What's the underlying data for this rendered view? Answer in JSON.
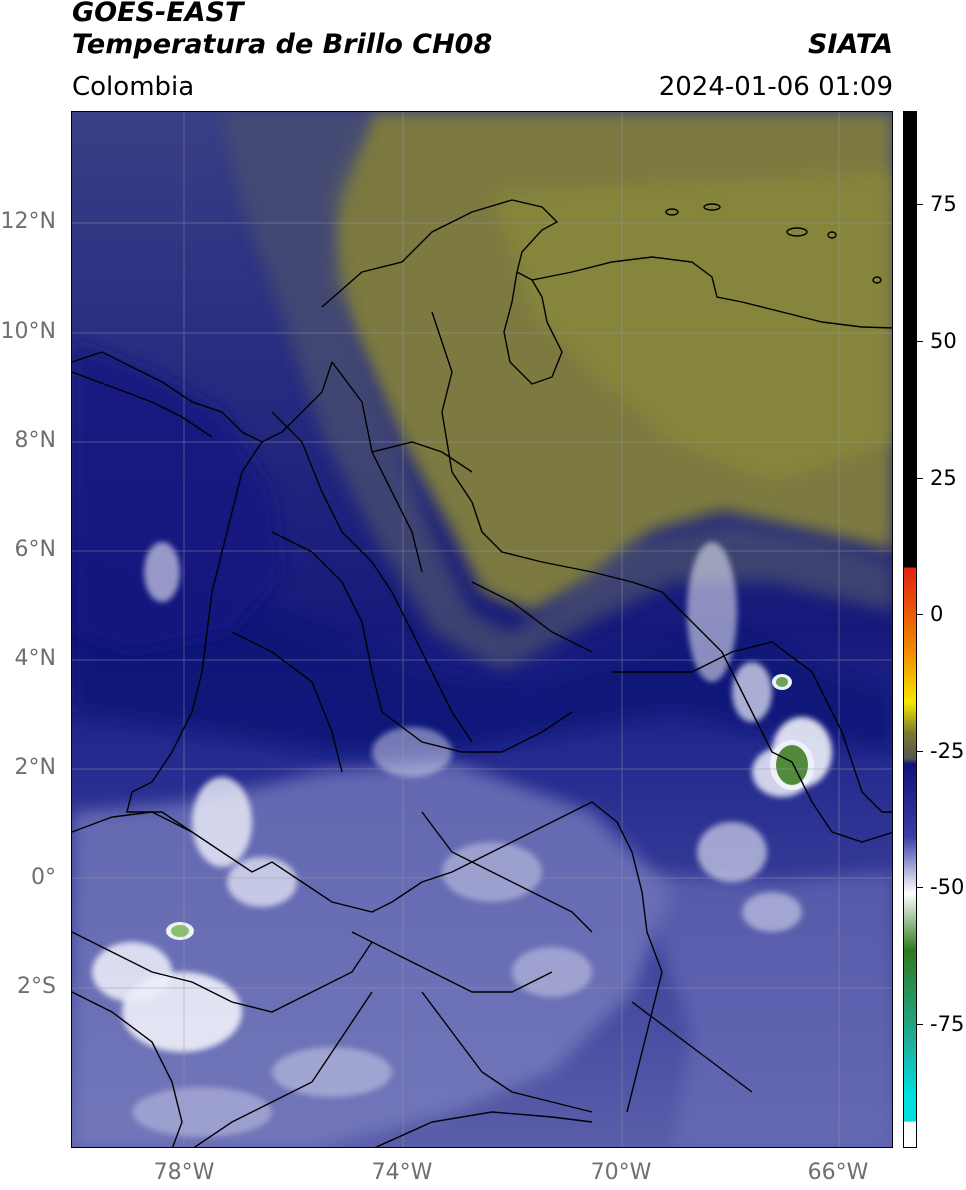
{
  "header": {
    "satellite": "GOES-EAST",
    "product": "Temperatura de Brillo CH08",
    "source": "SIATA",
    "region": "Colombia",
    "timestamp": "2024-01-06 01:09"
  },
  "axes": {
    "lat_labels": [
      "12°N",
      "10°N",
      "8°N",
      "6°N",
      "4°N",
      "2°N",
      "0°",
      "2°S"
    ],
    "lon_labels": [
      "78°W",
      "74°W",
      "70°W",
      "66°W"
    ]
  },
  "colorbar": {
    "labels": [
      "75",
      "50",
      "25",
      "0",
      "-25",
      "-50",
      "-75"
    ],
    "colors": {
      "hot": "#000000",
      "warm_red": "#e32112",
      "orange": "#f08a00",
      "yellow": "#f5e800",
      "olive": "#7c7a2c",
      "gray": "#555555",
      "navy": "#11117a",
      "blue": "#3b3ea6",
      "light": "#c9cbe6",
      "white": "#ffffff",
      "green": "#2f7a1e",
      "teal": "#1fb0a0",
      "cyan": "#00e0e0"
    }
  },
  "map": {
    "colors": {
      "olive_dry": "#7d7c3d",
      "gray_mid": "#4e516b",
      "navy_cloud": "#161a7e",
      "blue_moist": "#4448a0",
      "pale_moist": "#8c8fc4",
      "white_cold": "#e9ebf6",
      "green_core": "#4e8a3c"
    }
  }
}
